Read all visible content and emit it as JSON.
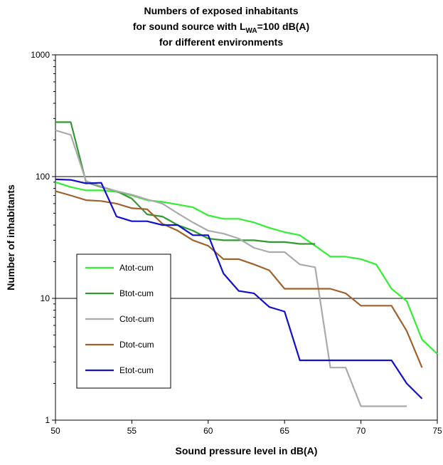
{
  "chart_data": {
    "type": "line",
    "title_lines": [
      {
        "text": "Numbers of exposed inhabitants"
      },
      {
        "prefix": "for sound source with L",
        "subscript": "WA",
        "suffix": "=100 dB(A)"
      },
      {
        "text": "for different environments"
      }
    ],
    "xlabel": "Sound pressure level in dB(A)",
    "ylabel": "Number of inhabitants",
    "xlim": [
      50,
      75
    ],
    "ylim": [
      1,
      1000
    ],
    "y_scale": "log",
    "x_ticks": [
      50,
      55,
      60,
      65,
      70,
      75
    ],
    "y_ticks": [
      1,
      10,
      100,
      1000
    ],
    "grid": "horizontal major gridlines",
    "legend_position": "left-center",
    "series": [
      {
        "name": "Atot-cum",
        "color": "#33ee33",
        "x": [
          50,
          51,
          52,
          53,
          54,
          55,
          56,
          57,
          58,
          59,
          60,
          61,
          62,
          63,
          64,
          65,
          66,
          67,
          68,
          69,
          70,
          71,
          72,
          73,
          74,
          75
        ],
        "y": [
          90,
          82,
          77,
          77,
          75,
          70,
          64,
          62,
          59,
          56,
          48,
          45,
          45,
          42,
          38,
          35,
          33,
          27,
          22,
          22,
          21,
          19,
          12,
          9.5,
          4.6,
          3.5
        ]
      },
      {
        "name": "Btot-cum",
        "color": "#339933",
        "x": [
          50,
          51,
          52,
          53,
          54,
          55,
          56,
          57,
          58,
          59,
          60,
          61,
          62,
          63,
          64,
          65,
          66,
          67
        ],
        "y": [
          280,
          280,
          90,
          82,
          76,
          66,
          49,
          47,
          40,
          36,
          31,
          30,
          30,
          30,
          29,
          29,
          28,
          28
        ]
      },
      {
        "name": "Ctot-cum",
        "color": "#aaaaaa",
        "x": [
          50,
          51,
          52,
          53,
          54,
          55,
          56,
          57,
          58,
          59,
          60,
          61,
          62,
          63,
          64,
          65,
          66,
          67,
          68,
          69,
          70,
          71,
          72,
          73
        ],
        "y": [
          240,
          220,
          92,
          83,
          76,
          71,
          65,
          60,
          50,
          42,
          36,
          34,
          31,
          26,
          24,
          24,
          19,
          18,
          2.7,
          2.7,
          1.3,
          1.3,
          1.3,
          1.3
        ]
      },
      {
        "name": "Dtot-cum",
        "color": "#a0622d",
        "x": [
          50,
          51,
          52,
          53,
          54,
          55,
          56,
          57,
          58,
          59,
          60,
          61,
          62,
          63,
          64,
          65,
          66,
          67,
          68,
          69,
          70,
          71,
          72,
          73,
          74
        ],
        "y": [
          76,
          70,
          64,
          63,
          60,
          55,
          54,
          41,
          36,
          30,
          27,
          21,
          21,
          19,
          17,
          12,
          12,
          12,
          12,
          11,
          8.7,
          8.7,
          8.7,
          5.4,
          2.7
        ]
      },
      {
        "name": "Etot-cum",
        "color": "#1111cc",
        "x": [
          50,
          51,
          52,
          53,
          54,
          55,
          56,
          57,
          58,
          59,
          60,
          61,
          62,
          63,
          64,
          65,
          66,
          67,
          68,
          69,
          70,
          71,
          72,
          73,
          74
        ],
        "y": [
          95,
          94,
          88,
          89,
          47,
          43,
          43,
          40,
          40,
          33,
          33,
          16,
          11.5,
          11,
          8.5,
          7.8,
          3.1,
          3.1,
          3.1,
          3.1,
          3.1,
          3.1,
          3.1,
          2.0,
          1.5
        ]
      }
    ]
  }
}
